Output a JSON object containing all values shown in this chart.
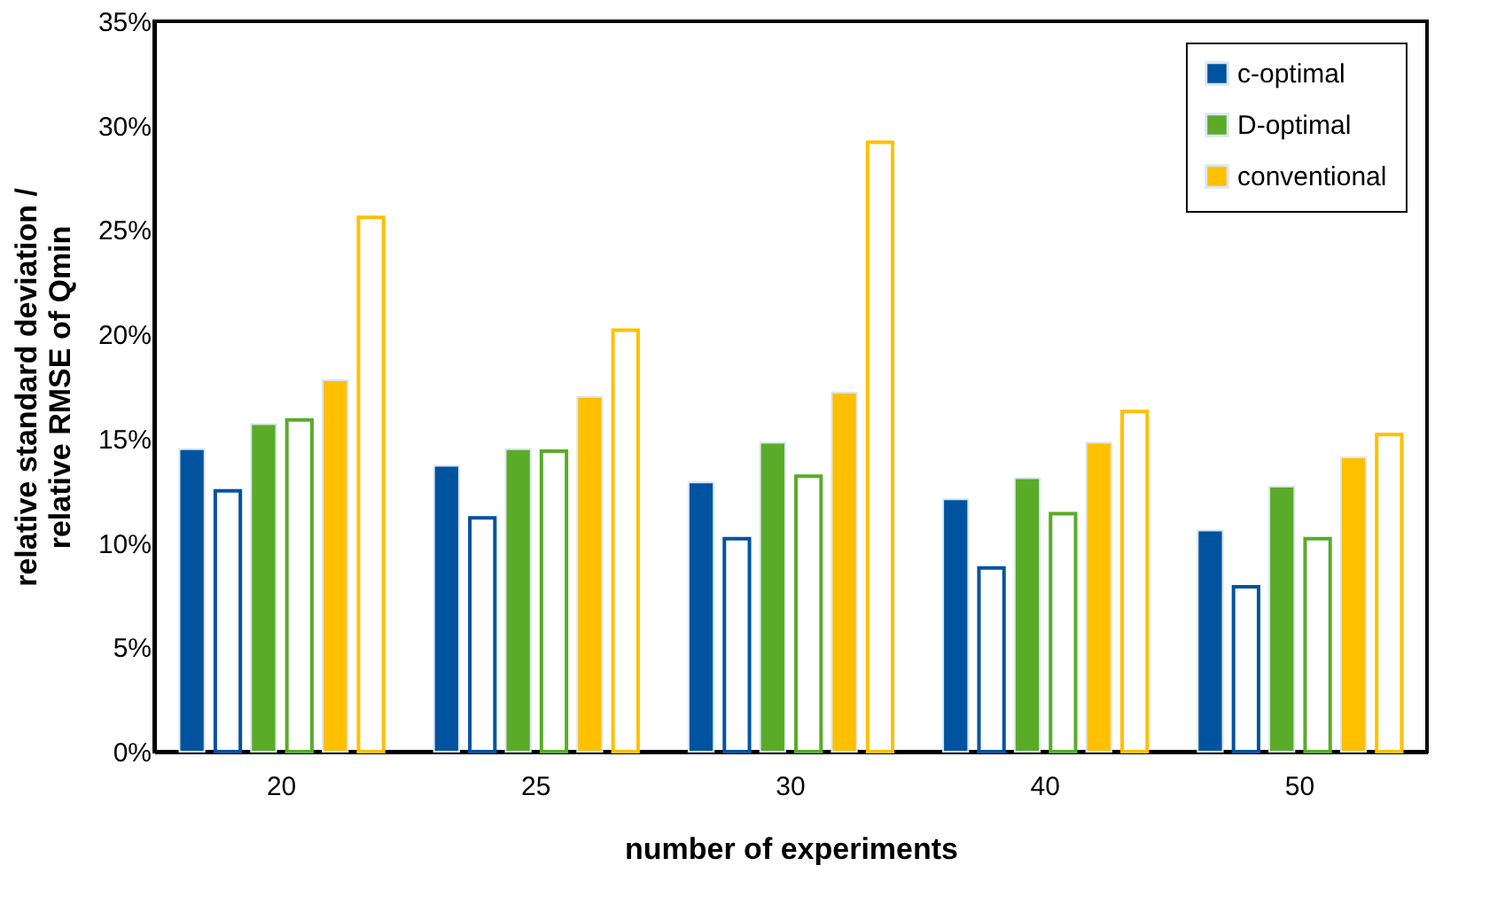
{
  "chart_data": {
    "type": "bar",
    "xlabel": "number of experiments",
    "ylabel": "relative standard deviation / relative RMSE of Qmin",
    "categories": [
      "20",
      "25",
      "30",
      "40",
      "50"
    ],
    "series": [
      {
        "name": "c-optimal",
        "color": "#00539f",
        "values": [
          14.5,
          13.7,
          12.9,
          12.1,
          10.6
        ]
      },
      {
        "color": "#00539f",
        "values": [
          12.5,
          11.2,
          10.2,
          8.8,
          7.9
        ]
      },
      {
        "name": "D-optimal",
        "color": "#5aab28",
        "values": [
          15.7,
          14.5,
          14.8,
          13.1,
          12.7
        ]
      },
      {
        "color": "#5aab28",
        "values": [
          15.9,
          14.4,
          13.2,
          11.4,
          10.2
        ]
      },
      {
        "name": "conventional",
        "color": "#ffc000",
        "values": [
          17.8,
          17.0,
          17.2,
          14.8,
          14.1
        ]
      },
      {
        "color": "#ffc000",
        "values": [
          25.6,
          20.2,
          29.2,
          16.3,
          15.2
        ]
      }
    ],
    "ylim": [
      0,
      35
    ],
    "yticks": [
      {
        "value": 0,
        "label": "0%"
      },
      {
        "value": 5,
        "label": "5%"
      },
      {
        "value": 10,
        "label": "10%"
      },
      {
        "value": 15,
        "label": "15%"
      },
      {
        "value": 20,
        "label": "20%"
      },
      {
        "value": 25,
        "label": "25%"
      },
      {
        "value": 30,
        "label": "30%"
      },
      {
        "value": 35,
        "label": "35%"
      }
    ],
    "grid": false,
    "legend": "top right"
  }
}
